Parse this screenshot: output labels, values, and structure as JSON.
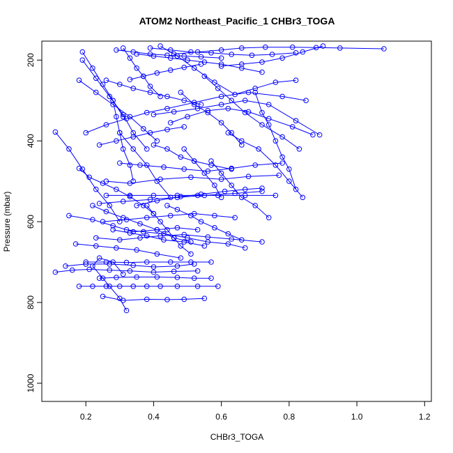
{
  "chart_data": {
    "type": "scatter",
    "title": "ATOM2 Northeast_Pacific_1 CHBr3_TOGA",
    "xlabel": "CHBr3_TOGA",
    "ylabel": "Pressure (mbar)",
    "xlim": [
      0.07,
      1.22
    ],
    "ylim": [
      1045,
      153
    ],
    "y_reversed": true,
    "x_ticks": [
      0.2,
      0.4,
      0.6,
      0.8,
      1.0,
      1.2
    ],
    "x_tick_labels": [
      "0.2",
      "0.4",
      "0.6",
      "0.8",
      "1.0",
      "1.2"
    ],
    "y_ticks": [
      200,
      400,
      600,
      800,
      1000
    ],
    "y_tick_labels": [
      "200",
      "400",
      "600",
      "800",
      "1000"
    ],
    "grid": false,
    "color": "#0000ff",
    "marker": "open-circle",
    "series": [
      {
        "x": [
          0.32,
          0.3,
          0.27,
          0.25,
          0.22,
          0.24,
          0.28,
          0.31
        ],
        "y": [
          820,
          790,
          760,
          740,
          710,
          690,
          700,
          730
        ]
      },
      {
        "x": [
          0.18,
          0.22,
          0.26,
          0.3,
          0.34,
          0.38,
          0.42,
          0.47,
          0.53,
          0.59
        ],
        "y": [
          760,
          760,
          760,
          760,
          760,
          760,
          760,
          760,
          760,
          760
        ]
      },
      {
        "x": [
          0.11,
          0.16,
          0.21,
          0.27,
          0.33,
          0.4,
          0.46,
          0.53
        ],
        "y": [
          725,
          720,
          718,
          720,
          722,
          725,
          723,
          722
        ]
      },
      {
        "x": [
          0.24,
          0.29,
          0.35,
          0.41,
          0.47,
          0.52,
          0.57
        ],
        "y": [
          740,
          738,
          737,
          737,
          738,
          740,
          740
        ]
      },
      {
        "x": [
          0.25,
          0.31,
          0.38,
          0.44,
          0.49,
          0.55
        ],
        "y": [
          785,
          795,
          792,
          793,
          792,
          790
        ]
      },
      {
        "x": [
          0.2,
          0.26,
          0.32,
          0.38,
          0.45,
          0.51,
          0.57
        ],
        "y": [
          700,
          700,
          701,
          700,
          700,
          700,
          700
        ]
      },
      {
        "x": [
          0.17,
          0.23,
          0.29,
          0.35,
          0.41,
          0.48
        ],
        "y": [
          655,
          660,
          665,
          670,
          680,
          690
        ]
      },
      {
        "x": [
          0.14,
          0.2,
          0.27,
          0.34,
          0.4,
          0.47,
          0.52
        ],
        "y": [
          710,
          705,
          705,
          708,
          712,
          710,
          705
        ]
      },
      {
        "x": [
          0.28,
          0.33,
          0.38,
          0.43,
          0.49,
          0.55
        ],
        "y": [
          620,
          628,
          635,
          645,
          650,
          660
        ]
      },
      {
        "x": [
          0.23,
          0.3,
          0.36,
          0.42,
          0.49,
          0.56,
          0.63,
          0.72
        ],
        "y": [
          640,
          645,
          640,
          635,
          632,
          638,
          643,
          650
        ]
      },
      {
        "x": [
          0.32,
          0.37,
          0.43,
          0.5,
          0.56,
          0.62,
          0.67
        ],
        "y": [
          620,
          625,
          630,
          640,
          650,
          655,
          665
        ]
      },
      {
        "x": [
          0.15,
          0.22,
          0.28,
          0.34,
          0.41,
          0.47,
          0.53
        ],
        "y": [
          585,
          595,
          610,
          625,
          620,
          615,
          620
        ]
      },
      {
        "x": [
          0.25,
          0.32,
          0.38,
          0.45,
          0.52,
          0.58,
          0.64
        ],
        "y": [
          600,
          595,
          590,
          585,
          580,
          585,
          590
        ]
      },
      {
        "x": [
          0.24,
          0.31,
          0.39,
          0.47,
          0.55,
          0.64,
          0.72
        ],
        "y": [
          555,
          550,
          545,
          540,
          535,
          530,
          525
        ]
      },
      {
        "x": [
          0.26,
          0.33,
          0.4,
          0.47,
          0.53,
          0.59,
          0.67,
          0.76
        ],
        "y": [
          535,
          535,
          535,
          535,
          535,
          535,
          535,
          535
        ]
      },
      {
        "x": [
          0.35,
          0.41,
          0.48,
          0.54,
          0.61,
          0.67,
          0.72
        ],
        "y": [
          560,
          548,
          538,
          532,
          525,
          520,
          517
        ]
      },
      {
        "x": [
          0.26,
          0.33,
          0.42,
          0.51,
          0.6,
          0.68,
          0.77
        ],
        "y": [
          500,
          505,
          495,
          490,
          495,
          488,
          485
        ]
      },
      {
        "x": [
          0.3,
          0.36,
          0.43,
          0.49,
          0.56,
          0.63,
          0.7,
          0.78
        ],
        "y": [
          455,
          460,
          465,
          470,
          475,
          468,
          460,
          455
        ]
      },
      {
        "x": [
          0.18,
          0.21,
          0.25,
          0.29,
          0.33,
          0.37,
          0.4
        ],
        "y": [
          468,
          490,
          505,
          520,
          538,
          560,
          580
        ]
      },
      {
        "x": [
          0.11,
          0.15,
          0.19,
          0.23,
          0.27,
          0.3
        ],
        "y": [
          378,
          420,
          470,
          520,
          560,
          600
        ]
      },
      {
        "x": [
          0.3,
          0.34,
          0.38,
          0.41,
          0.45
        ],
        "y": [
          380,
          420,
          460,
          500,
          540
        ]
      },
      {
        "x": [
          0.24,
          0.29,
          0.34,
          0.39,
          0.44,
          0.49
        ],
        "y": [
          410,
          400,
          390,
          380,
          372,
          365
        ]
      },
      {
        "x": [
          0.4,
          0.44,
          0.48,
          0.52,
          0.57,
          0.63
        ],
        "y": [
          410,
          420,
          440,
          450,
          460,
          470
        ]
      },
      {
        "x": [
          0.2,
          0.26,
          0.32,
          0.38,
          0.44,
          0.52,
          0.6,
          0.68,
          0.78,
          0.85
        ],
        "y": [
          380,
          360,
          345,
          330,
          320,
          305,
          290,
          280,
          290,
          300
        ]
      },
      {
        "x": [
          0.4,
          0.46,
          0.53,
          0.6,
          0.67,
          0.74,
          0.82,
          0.89
        ],
        "y": [
          335,
          328,
          320,
          310,
          300,
          310,
          350,
          385
        ]
      },
      {
        "x": [
          0.45,
          0.5,
          0.56,
          0.62,
          0.68,
          0.74,
          0.81,
          0.87
        ],
        "y": [
          355,
          340,
          325,
          320,
          328,
          345,
          365,
          385
        ]
      },
      {
        "x": [
          0.18,
          0.23,
          0.28,
          0.33,
          0.37,
          0.41
        ],
        "y": [
          250,
          280,
          310,
          340,
          370,
          400
        ]
      },
      {
        "x": [
          0.19,
          0.23,
          0.27,
          0.31,
          0.34,
          0.38
        ],
        "y": [
          200,
          245,
          290,
          335,
          380,
          420
        ]
      },
      {
        "x": [
          0.26,
          0.3,
          0.34,
          0.39,
          0.44,
          0.49,
          0.54
        ],
        "y": [
          250,
          260,
          270,
          280,
          290,
          300,
          310
        ]
      },
      {
        "x": [
          0.33,
          0.37,
          0.41,
          0.45,
          0.49,
          0.54
        ],
        "y": [
          248,
          240,
          232,
          225,
          218,
          210
        ]
      },
      {
        "x": [
          0.35,
          0.4,
          0.45,
          0.5,
          0.55,
          0.6,
          0.66,
          0.72
        ],
        "y": [
          185,
          190,
          195,
          200,
          205,
          210,
          220,
          230
        ]
      },
      {
        "x": [
          0.29,
          0.34,
          0.39,
          0.44,
          0.49,
          0.54,
          0.6
        ],
        "y": [
          175,
          180,
          185,
          188,
          190,
          192,
          195
        ]
      },
      {
        "x": [
          0.39,
          0.45,
          0.51,
          0.57,
          0.63,
          0.69,
          0.75,
          0.82
        ],
        "y": [
          170,
          175,
          180,
          182,
          186,
          188,
          186,
          182
        ]
      },
      {
        "x": [
          0.46,
          0.53,
          0.6,
          0.66,
          0.73,
          0.81,
          0.88,
          0.95,
          1.08
        ],
        "y": [
          185,
          180,
          175,
          170,
          168,
          168,
          169,
          170,
          172
        ]
      },
      {
        "x": [
          0.6,
          0.66,
          0.72,
          0.78,
          0.84,
          0.9
        ],
        "y": [
          215,
          210,
          205,
          195,
          180,
          165
        ]
      },
      {
        "x": [
          0.42,
          0.47,
          0.52,
          0.58,
          0.64,
          0.7,
          0.76,
          0.82
        ],
        "y": [
          165,
          190,
          220,
          255,
          285,
          270,
          255,
          250
        ]
      },
      {
        "x": [
          0.48,
          0.52,
          0.56,
          0.6,
          0.63,
          0.66
        ],
        "y": [
          280,
          310,
          330,
          355,
          380,
          410
        ]
      },
      {
        "x": [
          0.55,
          0.59,
          0.63,
          0.67,
          0.72,
          0.78,
          0.83
        ],
        "y": [
          240,
          270,
          300,
          330,
          360,
          390,
          420
        ]
      },
      {
        "x": [
          0.7,
          0.72,
          0.74,
          0.76,
          0.78,
          0.8,
          0.82
        ],
        "y": [
          280,
          330,
          360,
          400,
          440,
          470,
          520
        ]
      },
      {
        "x": [
          0.57,
          0.6,
          0.63,
          0.66,
          0.7,
          0.74
        ],
        "y": [
          450,
          480,
          510,
          540,
          560,
          590
        ]
      },
      {
        "x": [
          0.62,
          0.66,
          0.71,
          0.76,
          0.8,
          0.84
        ],
        "y": [
          380,
          400,
          420,
          460,
          500,
          540
        ]
      },
      {
        "x": [
          0.49,
          0.52,
          0.55,
          0.58,
          0.6
        ],
        "y": [
          420,
          450,
          480,
          510,
          540
        ]
      },
      {
        "x": [
          0.19,
          0.22,
          0.25,
          0.28,
          0.31
        ],
        "y": [
          180,
          220,
          260,
          300,
          340
        ]
      },
      {
        "x": [
          0.28,
          0.29,
          0.3,
          0.31,
          0.33,
          0.34
        ],
        "y": [
          300,
          340,
          380,
          420,
          460,
          500
        ]
      },
      {
        "x": [
          0.31,
          0.33,
          0.35,
          0.37,
          0.39,
          0.42
        ],
        "y": [
          170,
          195,
          220,
          240,
          265,
          290
        ]
      },
      {
        "x": [
          0.38,
          0.4,
          0.42,
          0.44,
          0.46,
          0.48,
          0.51
        ],
        "y": [
          560,
          580,
          600,
          620,
          640,
          660,
          680
        ]
      },
      {
        "x": [
          0.44,
          0.47,
          0.51,
          0.54,
          0.58,
          0.62,
          0.66
        ],
        "y": [
          560,
          570,
          585,
          600,
          615,
          630,
          645
        ]
      },
      {
        "x": [
          0.22,
          0.26,
          0.31,
          0.36,
          0.41,
          0.46,
          0.51
        ],
        "y": [
          560,
          575,
          590,
          605,
          620,
          640,
          650
        ]
      }
    ]
  }
}
